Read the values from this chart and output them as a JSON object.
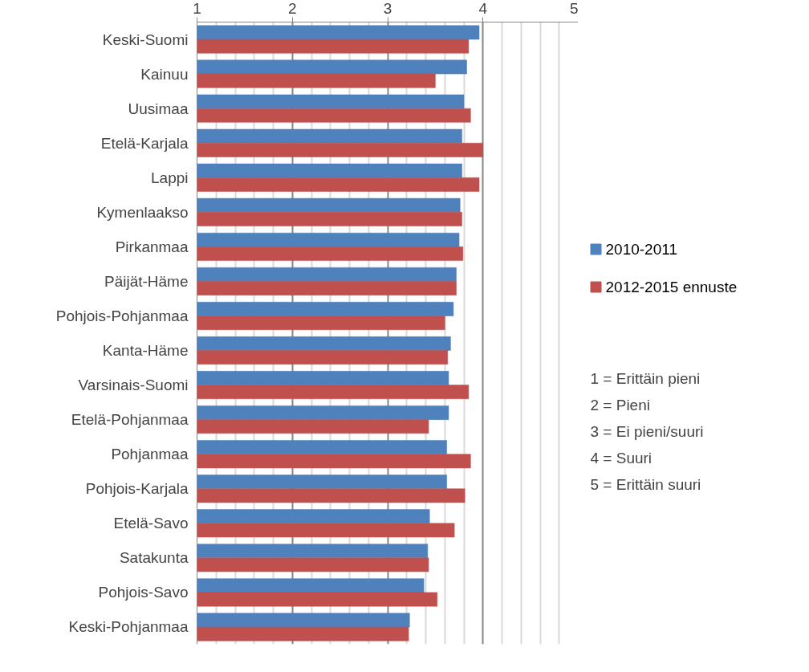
{
  "chart_data": {
    "type": "bar",
    "orientation": "horizontal",
    "categories": [
      "Keski-Suomi",
      "Kainuu",
      "Uusimaa",
      "Etelä-Karjala",
      "Lappi",
      "Kymenlaakso",
      "Pirkanmaa",
      "Päijät-Häme",
      "Pohjois-Pohjanmaa",
      "Kanta-Häme",
      "Varsinais-Suomi",
      "Etelä-Pohjanmaa",
      "Pohjanmaa",
      "Pohjois-Karjala",
      "Etelä-Savo",
      "Satakunta",
      "Pohjois-Savo",
      "Keski-Pohjanmaa"
    ],
    "series": [
      {
        "name": "2010-2011",
        "color": "#4f81bd",
        "values": [
          3.96,
          3.83,
          3.8,
          3.78,
          3.78,
          3.76,
          3.75,
          3.72,
          3.69,
          3.66,
          3.64,
          3.64,
          3.62,
          3.62,
          3.44,
          3.42,
          3.38,
          3.23
        ]
      },
      {
        "name": "2012-2015 ennuste",
        "color": "#c0504d",
        "values": [
          3.85,
          3.5,
          3.87,
          4.0,
          3.96,
          3.78,
          3.79,
          3.72,
          3.6,
          3.63,
          3.85,
          3.43,
          3.87,
          3.81,
          3.7,
          3.43,
          3.52,
          3.22
        ]
      }
    ],
    "xlim": [
      1,
      5
    ],
    "xticks": [
      1,
      2,
      3,
      4,
      5
    ],
    "grid": "x",
    "legend": "right",
    "annotations": [
      "1 = Erittäin pieni",
      "2 = Pieni",
      "3 = Ei pieni/suuri",
      "4 = Suuri",
      "5 = Erittäin suuri"
    ]
  }
}
